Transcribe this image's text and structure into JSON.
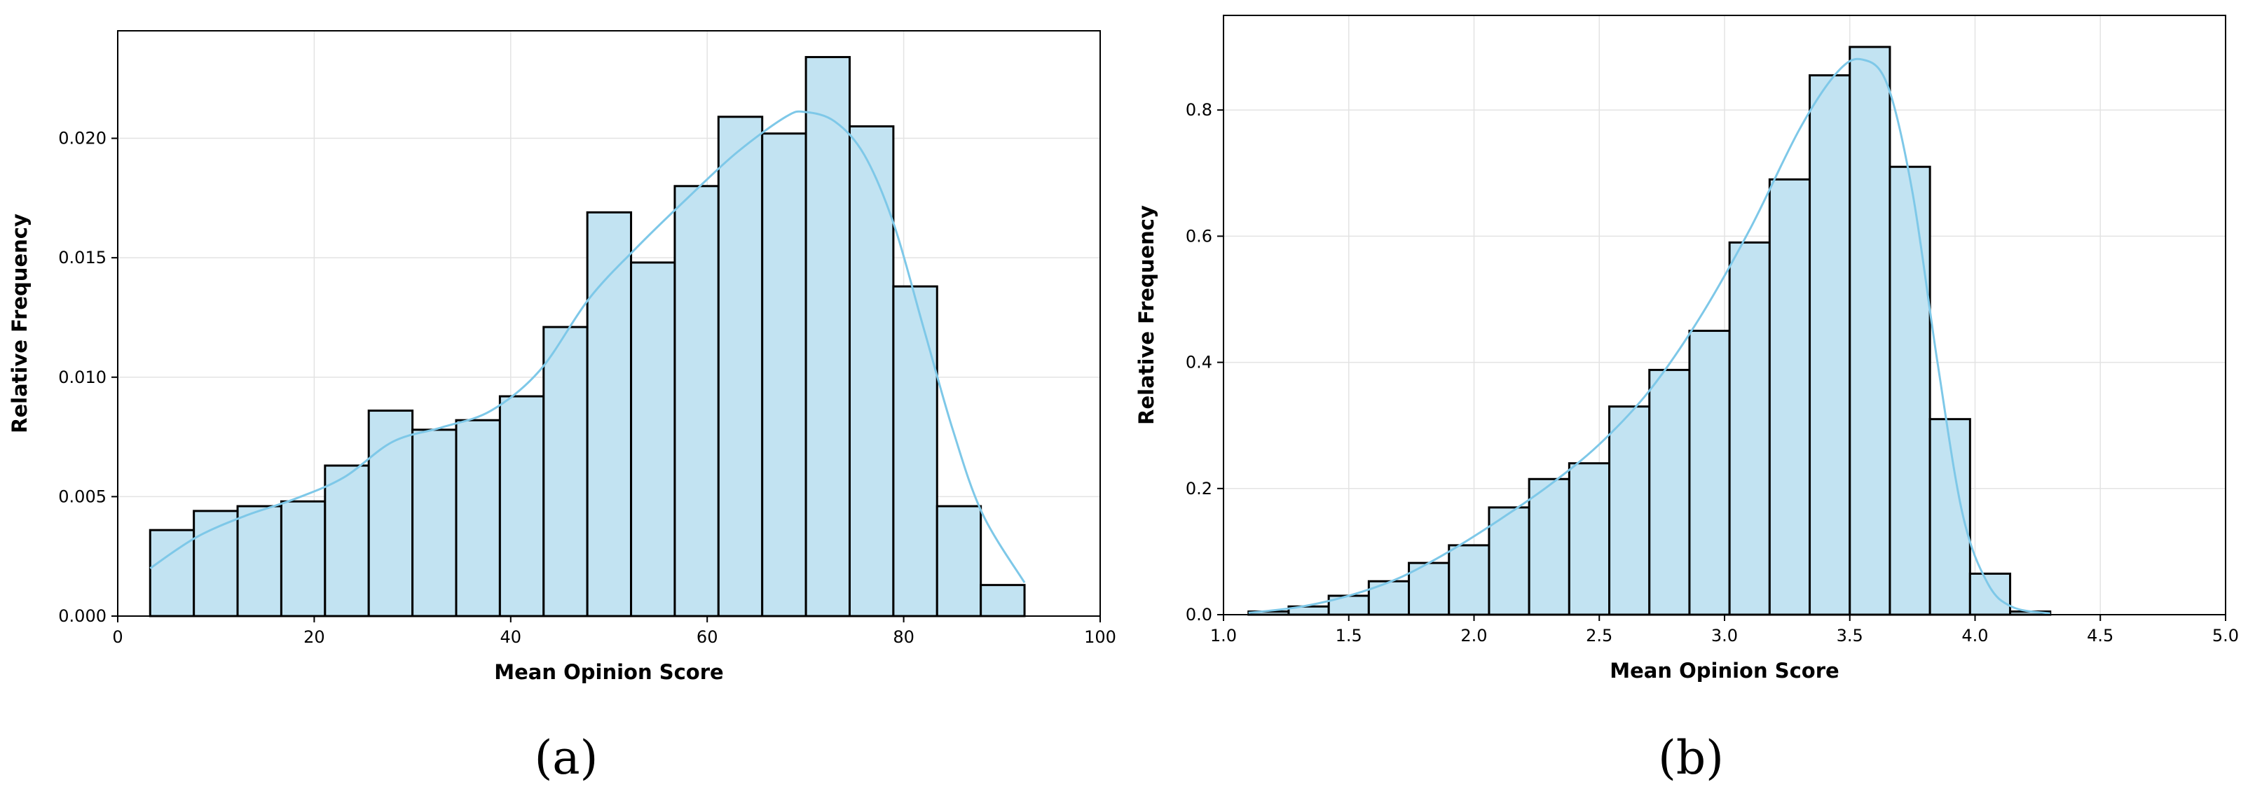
{
  "colors": {
    "bar_fill": "#c2e3f2",
    "bar_edge": "#000000",
    "kde": "#7ec8e8",
    "grid": "#e3e3e3"
  },
  "chart_data": [
    {
      "type": "bar",
      "subtype": "histogram-with-kde",
      "panel_label": "(a)",
      "xlabel": "Mean Opinion Score",
      "ylabel": "Relative Frequency",
      "xlim": [
        0,
        100
      ],
      "ylim": [
        0,
        0.0245
      ],
      "grid": true,
      "xticks": [
        0,
        20,
        40,
        60,
        80,
        100
      ],
      "xtick_labels": [
        "0",
        "20",
        "40",
        "60",
        "80",
        "100"
      ],
      "yticks": [
        0,
        0.005,
        0.01,
        0.015,
        0.02
      ],
      "ytick_labels": [
        "0.000",
        "0.005",
        "0.010",
        "0.015",
        "0.020"
      ],
      "bin_edges": [
        3.3,
        7.75,
        12.2,
        16.65,
        21.1,
        25.55,
        30.0,
        34.45,
        38.9,
        43.35,
        47.8,
        52.25,
        56.7,
        61.15,
        65.6,
        70.05,
        74.5,
        78.95,
        83.4,
        87.85,
        92.3
      ],
      "values": [
        0.0036,
        0.0044,
        0.0046,
        0.0048,
        0.0063,
        0.0086,
        0.0078,
        0.0082,
        0.0092,
        0.0121,
        0.0169,
        0.0148,
        0.018,
        0.0209,
        0.0202,
        0.0234,
        0.0205,
        0.0138,
        0.0046,
        0.0013
      ],
      "kde": {
        "x": [
          3.3,
          8,
          13,
          18,
          23,
          28,
          33,
          38,
          43,
          48,
          53,
          58,
          63,
          68,
          70,
          73,
          76,
          79,
          82,
          85,
          88,
          92.3
        ],
        "y": [
          0.002,
          0.0033,
          0.0042,
          0.0049,
          0.0058,
          0.0073,
          0.0079,
          0.0086,
          0.0103,
          0.0133,
          0.0155,
          0.0175,
          0.0194,
          0.0209,
          0.0211,
          0.0207,
          0.0193,
          0.0164,
          0.0121,
          0.0078,
          0.0043,
          0.0014
        ]
      }
    },
    {
      "type": "bar",
      "subtype": "histogram-with-kde",
      "panel_label": "(b)",
      "xlabel": "Mean Opinion Score",
      "ylabel": "Relative Frequency",
      "xlim": [
        1.0,
        5.0
      ],
      "ylim": [
        0,
        0.95
      ],
      "grid": true,
      "xticks": [
        1.0,
        1.5,
        2.0,
        2.5,
        3.0,
        3.5,
        4.0,
        4.5,
        5.0
      ],
      "xtick_labels": [
        "1.0",
        "1.5",
        "2.0",
        "2.5",
        "3.0",
        "3.5",
        "4.0",
        "4.5",
        "5.0"
      ],
      "yticks": [
        0,
        0.2,
        0.4,
        0.6,
        0.8
      ],
      "ytick_labels": [
        "0.0",
        "0.2",
        "0.4",
        "0.6",
        "0.8"
      ],
      "bin_edges": [
        1.1,
        1.26,
        1.42,
        1.58,
        1.74,
        1.9,
        2.06,
        2.22,
        2.38,
        2.54,
        2.7,
        2.86,
        3.02,
        3.18,
        3.34,
        3.5,
        3.66,
        3.82,
        3.98,
        4.14,
        4.3
      ],
      "values": [
        0.005,
        0.013,
        0.03,
        0.053,
        0.082,
        0.11,
        0.17,
        0.215,
        0.24,
        0.33,
        0.388,
        0.45,
        0.59,
        0.69,
        0.855,
        0.9,
        0.71,
        0.31,
        0.065,
        0.005
      ],
      "kde": {
        "x": [
          1.1,
          1.3,
          1.5,
          1.7,
          1.9,
          2.1,
          2.3,
          2.5,
          2.7,
          2.9,
          3.1,
          3.3,
          3.45,
          3.55,
          3.65,
          3.75,
          3.85,
          3.95,
          4.05,
          4.15,
          4.3
        ],
        "y": [
          0.003,
          0.012,
          0.03,
          0.058,
          0.1,
          0.15,
          0.205,
          0.27,
          0.355,
          0.47,
          0.61,
          0.77,
          0.86,
          0.88,
          0.84,
          0.67,
          0.4,
          0.16,
          0.05,
          0.012,
          0.002
        ]
      }
    }
  ]
}
